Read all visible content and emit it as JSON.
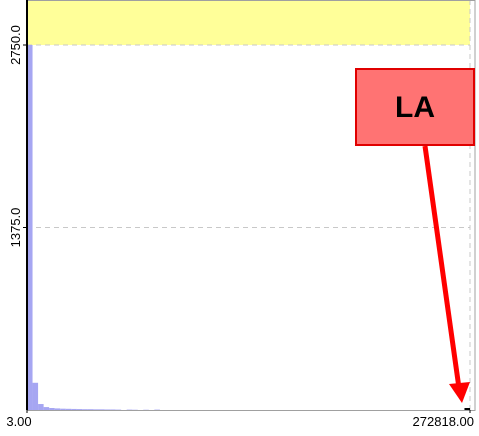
{
  "chart_data": {
    "type": "histogram",
    "bins": [
      3,
      3413.1875,
      6823.375,
      10233.5625,
      13643.75,
      17053.9375,
      20464.125,
      23874.3125,
      27284.5,
      30694.6875,
      34104.875,
      37515.0625,
      40925.25,
      44335.4375,
      47745.625,
      51155.8125,
      54566,
      57976.1875,
      61386.375,
      64796.5625,
      68206.75,
      71616.9375,
      75027.125,
      78437.3125,
      81847.5,
      85257.6875,
      88667.875,
      92078.0625,
      95488.25,
      98898.4375,
      102308.625,
      105718.8125,
      109129,
      112539.1875,
      115949.375,
      119359.5625,
      122769.75,
      126179.9375,
      129590.125,
      133000.3125,
      136410.5,
      139820.6875,
      143230.875,
      146641.0625,
      150051.25,
      153461.4375,
      156871.625,
      160281.8125,
      163692,
      167102.1875,
      170512.375,
      173922.5625,
      177332.75,
      180742.9375,
      184153.125,
      187563.3125,
      190973.5,
      194383.6875,
      197793.875,
      201204.0625,
      204614.25,
      208024.4375,
      211434.625,
      214844.8125,
      218255,
      221665.1875,
      225075.375,
      228485.5625,
      231895.75,
      235305.9375,
      238716.125,
      242126.3125,
      245536.5,
      248946.6875,
      252356.875,
      255767.0625,
      259177.25,
      262587.4375,
      265997.625,
      269407.8125,
      272818
    ],
    "values": [
      2750,
      205,
      45,
      22,
      15,
      12,
      10,
      9,
      8,
      7,
      6,
      6,
      5,
      5,
      4,
      4,
      3,
      0,
      3,
      2,
      0,
      2,
      0,
      3,
      0,
      0,
      0,
      0,
      0,
      0,
      0,
      0,
      0,
      0,
      0,
      0,
      0,
      0,
      0,
      0,
      0,
      0,
      0,
      0,
      0,
      0,
      0,
      0,
      0,
      0,
      0,
      0,
      0,
      0,
      0,
      0,
      0,
      0,
      0,
      0,
      0,
      0,
      0,
      0,
      0,
      0,
      0,
      0,
      0,
      0,
      0,
      0,
      0,
      0,
      0,
      0,
      0,
      0,
      0,
      15
    ],
    "color": "#a6a6f2",
    "xlim": [
      3,
      272818
    ],
    "xticks": [
      {
        "value": 3,
        "label": "3.00"
      },
      {
        "value": 272818,
        "label": "272818.00"
      }
    ],
    "ylim": [
      0,
      3089
    ],
    "yticks": [
      {
        "value": 1375,
        "label": "1375.0"
      },
      {
        "value": 2750,
        "label": "2750.0"
      }
    ],
    "grid": true,
    "annotation": "LA"
  }
}
